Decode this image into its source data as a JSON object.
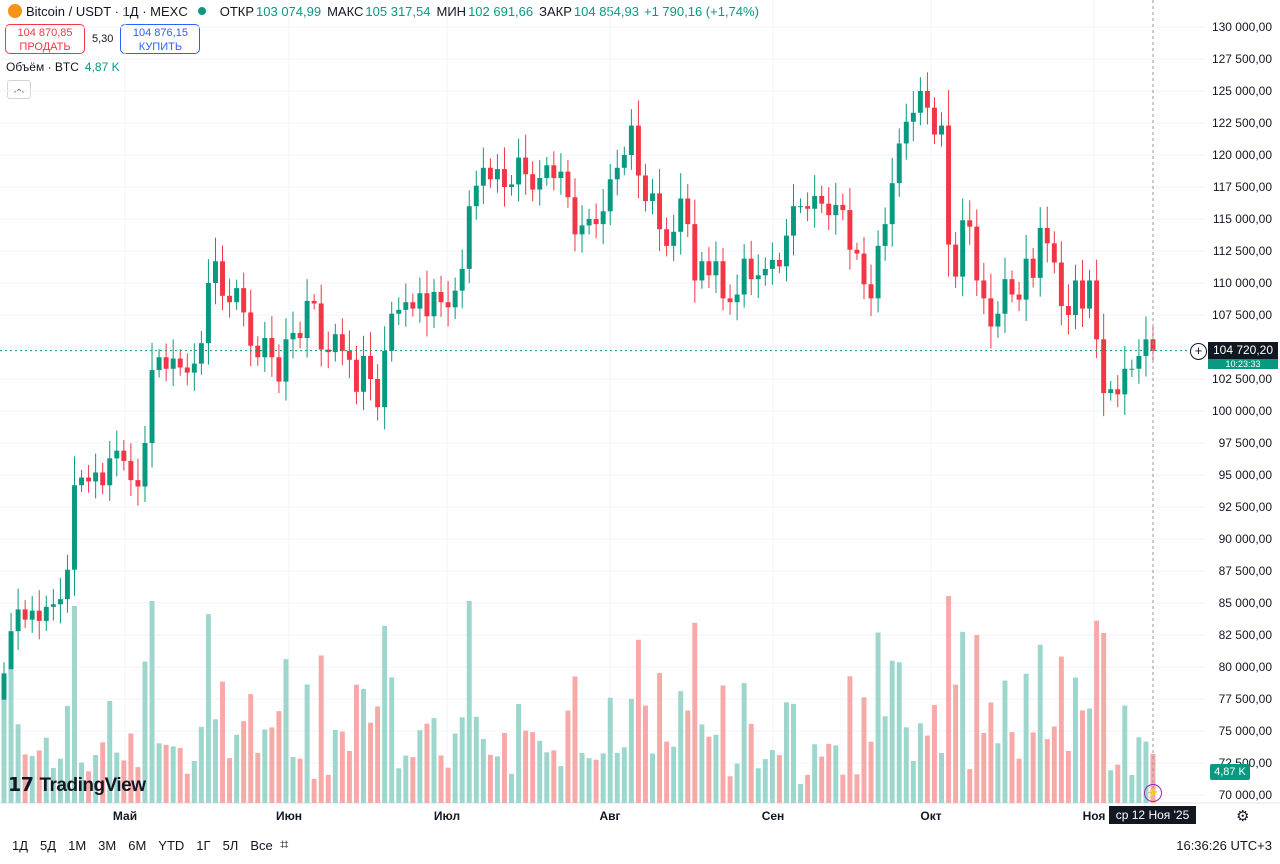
{
  "header": {
    "symbol": "Bitcoin / USDT · 1Д · MEXC",
    "open_label": "ОТКР",
    "open_value": "103 074,99",
    "high_label": "МАКС",
    "high_value": "105 317,54",
    "low_label": "МИН",
    "low_value": "102 691,66",
    "close_label": "ЗАКР",
    "close_value": "104 854,93",
    "change": "+1 790,16 (+1,74%)"
  },
  "trade": {
    "sell_price": "104 870,85",
    "sell_label": "ПРОДАТЬ",
    "spread": "5,30",
    "buy_price": "104 876,15",
    "buy_label": "КУПИТЬ"
  },
  "volume_legend": {
    "label": "Объём · BTC",
    "value": "4,87 K"
  },
  "collapse_icon": "chevron-up-icon",
  "price_axis": [
    "130 000,00",
    "127 500,00",
    "125 000,00",
    "122 500,00",
    "120 000,00",
    "117 500,00",
    "115 000,00",
    "112 500,00",
    "110 000,00",
    "107 500,00",
    "105 000,00",
    "102 500,00",
    "100 000,00",
    "97 500,00",
    "95 000,00",
    "92 500,00",
    "90 000,00",
    "87 500,00",
    "85 000,00",
    "82 500,00",
    "80 000,00",
    "77 500,00",
    "75 000,00",
    "72 500,00",
    "70 000,00"
  ],
  "current_price_label": "104 720,20",
  "countdown_label": "10:23:33",
  "volume_label": "4,87 K",
  "time_axis": [
    "Май",
    "Июн",
    "Июл",
    "Авг",
    "Сен",
    "Окт",
    "Ноя"
  ],
  "crosshair_date": "ср 12 Ноя '25",
  "branding": "TradingView",
  "ranges": [
    "1Д",
    "5Д",
    "1М",
    "3М",
    "6М",
    "YTD",
    "1Г",
    "5Л",
    "Все"
  ],
  "clock": "16:36:26 UTC+3",
  "colors": {
    "up": "#089981",
    "down": "#f23645",
    "up_vol": "#9cd6cc",
    "down_vol": "#f7a9a7"
  },
  "chart_data": {
    "type": "candlestick",
    "title": "Bitcoin / USDT · 1Д · MEXC",
    "y_range": [
      70000,
      130000
    ],
    "x_months": [
      "Май",
      "Июн",
      "Июл",
      "Авг",
      "Сен",
      "Окт",
      "Ноя"
    ],
    "closes": [
      79500,
      82800,
      84500,
      83700,
      84400,
      83600,
      84700,
      84900,
      85300,
      87600,
      94200,
      94800,
      94500,
      95200,
      94200,
      96300,
      96900,
      96100,
      94600,
      94100,
      97500,
      103200,
      104200,
      103300,
      104100,
      103400,
      103000,
      103700,
      105300,
      110000,
      111700,
      109000,
      108500,
      109600,
      107700,
      105100,
      104200,
      105700,
      104200,
      102300,
      105600,
      106100,
      105700,
      108600,
      108400,
      104800,
      104600,
      106000,
      104700,
      104000,
      101500,
      104300,
      102500,
      100300,
      104700,
      107600,
      107900,
      108500,
      108000,
      109200,
      107400,
      109300,
      108500,
      108100,
      109400,
      111100,
      116000,
      117600,
      119000,
      118100,
      118900,
      117500,
      117700,
      119800,
      118500,
      117300,
      118200,
      119200,
      118200,
      118700,
      116700,
      113800,
      114500,
      115000,
      114600,
      115600,
      118100,
      119000,
      120000,
      122300,
      118400,
      116400,
      117000,
      114200,
      112900,
      114000,
      116600,
      114600,
      110200,
      111700,
      110600,
      111700,
      108800,
      108500,
      109100,
      111900,
      110300,
      110600,
      111100,
      111800,
      111300,
      113700,
      116000,
      116000,
      115800,
      116800,
      116200,
      115300,
      116100,
      115700,
      112600,
      112300,
      109900,
      108800,
      112900,
      114600,
      117800,
      120900,
      122600,
      123300,
      125000,
      123700,
      121600,
      122300,
      113000,
      110500,
      114900,
      114400,
      110200,
      108800,
      106600,
      107600,
      110300,
      109100,
      108700,
      111900,
      110400,
      114300,
      113100,
      111600,
      108200,
      107500,
      110200,
      108000,
      110200,
      105600,
      101400,
      101700,
      101300,
      103300,
      103300,
      104300,
      105600,
      104700
    ]
  }
}
